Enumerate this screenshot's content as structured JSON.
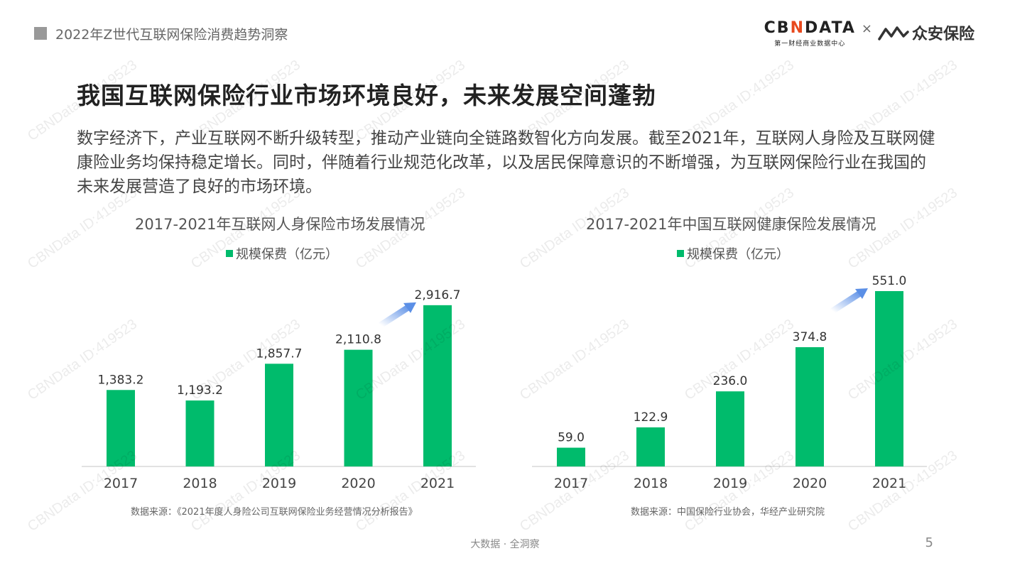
{
  "header": {
    "title": "2022年Z世代互联网保险消费趋势洞察"
  },
  "logo": {
    "cbn_text": "CBNDATA",
    "cbn_sub": "第一财经商业数据中心",
    "separator": "×",
    "partner": "众安保险"
  },
  "main": {
    "title": "我国互联网保险行业市场环境良好，未来发展空间蓬勃",
    "description": "数字经济下，产业互联网不断升级转型，推动产业链向全链路数智化方向发展。截至2021年，互联网人身险及互联网健康险业务均保持稳定增长。同时，伴随着行业规范化改革，以及居民保障意识的不断增强，为互联网保险行业在我国的未来发展营造了良好的市场环境。"
  },
  "colors": {
    "bar": "#00bb6c",
    "arrow": "#5b8fe6",
    "axis": "#d9d9d9"
  },
  "chart_data": [
    {
      "type": "bar",
      "title": "2017-2021年互联网人身保险市场发展情况",
      "categories": [
        "2017",
        "2018",
        "2019",
        "2020",
        "2021"
      ],
      "series": [
        {
          "name": "规模保费（亿元）",
          "values": [
            1383.2,
            1193.2,
            1857.7,
            2110.8,
            2916.7
          ]
        }
      ],
      "value_labels": [
        "1,383.2",
        "1,193.2",
        "1,857.7",
        "2,110.8",
        "2,916.7"
      ],
      "ylim": [
        0,
        3300
      ],
      "grid": false,
      "legend": "top-center",
      "source": "数据来源：《2021年度人身险公司互联网保险业务经营情况分析报告》"
    },
    {
      "type": "bar",
      "title": "2017-2021年中国互联网健康保险发展情况",
      "categories": [
        "2017",
        "2018",
        "2019",
        "2020",
        "2021"
      ],
      "series": [
        {
          "name": "规模保费（亿元）",
          "values": [
            59.0,
            122.9,
            236.0,
            374.8,
            551.0
          ]
        }
      ],
      "value_labels": [
        "59.0",
        "122.9",
        "236.0",
        "374.8",
        "551.0"
      ],
      "ylim": [
        0,
        551.0
      ],
      "grid": false,
      "legend": "top-center",
      "source": "数据来源：中国保险行业协会，华经产业研究院"
    }
  ],
  "footer": {
    "text": "大数据 · 全洞察",
    "page_number": "5"
  },
  "watermark": {
    "text": "CBNData ID:419523"
  }
}
